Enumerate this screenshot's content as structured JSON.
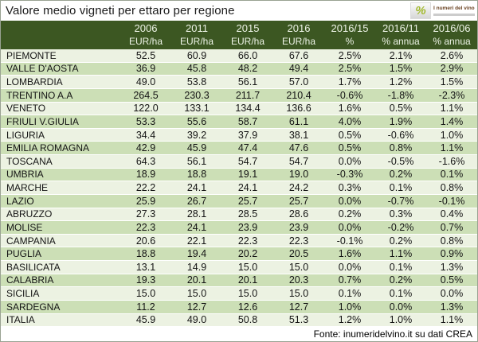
{
  "title": "Valore medio vigneti per ettaro per regione",
  "logo": {
    "name": "I numeri del vino",
    "icon_glyph": "%"
  },
  "footer": {
    "source": "Fonte: inumeridelvino.it su dati CREA"
  },
  "colors": {
    "header_bg": "#3c5722",
    "header_text": "#edf3e6",
    "row_light": "#ecf2e2",
    "row_dark": "#ccdfb6",
    "title_text": "#1b1b1b",
    "logo_green": "#a2b92d"
  },
  "chart_data": {
    "type": "table",
    "title": "Valore medio vigneti per ettaro per regione",
    "columns": [
      {
        "label": "2006",
        "sub": "EUR/ha"
      },
      {
        "label": "2011",
        "sub": "EUR/ha"
      },
      {
        "label": "2015",
        "sub": "EUR/ha"
      },
      {
        "label": "2016",
        "sub": "EUR/ha"
      },
      {
        "label": "2016/15",
        "sub": "%"
      },
      {
        "label": "2016/11",
        "sub": "% annua"
      },
      {
        "label": "2016/06",
        "sub": "% annua"
      }
    ],
    "rows": [
      {
        "region": "PIEMONTE",
        "values": [
          "52.5",
          "60.9",
          "66.0",
          "67.6",
          "2.5%",
          "2.1%",
          "2.6%"
        ]
      },
      {
        "region": "VALLE D'AOSTA",
        "values": [
          "36.9",
          "45.8",
          "48.2",
          "49.4",
          "2.5%",
          "1.5%",
          "2.9%"
        ]
      },
      {
        "region": "LOMBARDIA",
        "values": [
          "49.0",
          "53.8",
          "56.1",
          "57.0",
          "1.7%",
          "1.2%",
          "1.5%"
        ]
      },
      {
        "region": "TRENTINO A.A",
        "values": [
          "264.5",
          "230.3",
          "211.7",
          "210.4",
          "-0.6%",
          "-1.8%",
          "-2.3%"
        ]
      },
      {
        "region": "VENETO",
        "values": [
          "122.0",
          "133.1",
          "134.4",
          "136.6",
          "1.6%",
          "0.5%",
          "1.1%"
        ]
      },
      {
        "region": "FRIULI V.GIULIA",
        "values": [
          "53.3",
          "55.6",
          "58.7",
          "61.1",
          "4.0%",
          "1.9%",
          "1.4%"
        ]
      },
      {
        "region": "LIGURIA",
        "values": [
          "34.4",
          "39.2",
          "37.9",
          "38.1",
          "0.5%",
          "-0.6%",
          "1.0%"
        ]
      },
      {
        "region": "EMILIA ROMAGNA",
        "values": [
          "42.9",
          "45.9",
          "47.4",
          "47.6",
          "0.5%",
          "0.8%",
          "1.1%"
        ]
      },
      {
        "region": "TOSCANA",
        "values": [
          "64.3",
          "56.1",
          "54.7",
          "54.7",
          "0.0%",
          "-0.5%",
          "-1.6%"
        ]
      },
      {
        "region": "UMBRIA",
        "values": [
          "18.9",
          "18.8",
          "19.1",
          "19.0",
          "-0.3%",
          "0.2%",
          "0.1%"
        ]
      },
      {
        "region": "MARCHE",
        "values": [
          "22.2",
          "24.1",
          "24.1",
          "24.2",
          "0.3%",
          "0.1%",
          "0.8%"
        ]
      },
      {
        "region": "LAZIO",
        "values": [
          "25.9",
          "26.7",
          "25.7",
          "25.7",
          "0.0%",
          "-0.7%",
          "-0.1%"
        ]
      },
      {
        "region": "ABRUZZO",
        "values": [
          "27.3",
          "28.1",
          "28.5",
          "28.6",
          "0.2%",
          "0.3%",
          "0.4%"
        ]
      },
      {
        "region": "MOLISE",
        "values": [
          "22.3",
          "24.1",
          "23.9",
          "23.9",
          "0.0%",
          "-0.2%",
          "0.7%"
        ]
      },
      {
        "region": "CAMPANIA",
        "values": [
          "20.6",
          "22.1",
          "22.3",
          "22.3",
          "-0.1%",
          "0.2%",
          "0.8%"
        ]
      },
      {
        "region": "PUGLIA",
        "values": [
          "18.8",
          "19.4",
          "20.2",
          "20.5",
          "1.6%",
          "1.1%",
          "0.9%"
        ]
      },
      {
        "region": "BASILICATA",
        "values": [
          "13.1",
          "14.9",
          "15.0",
          "15.0",
          "0.0%",
          "0.1%",
          "1.3%"
        ]
      },
      {
        "region": "CALABRIA",
        "values": [
          "19.3",
          "20.1",
          "20.1",
          "20.3",
          "0.7%",
          "0.2%",
          "0.5%"
        ]
      },
      {
        "region": "SICILIA",
        "values": [
          "15.0",
          "15.0",
          "15.0",
          "15.0",
          "0.1%",
          "0.1%",
          "0.0%"
        ]
      },
      {
        "region": "SARDEGNA",
        "values": [
          "11.2",
          "12.7",
          "12.6",
          "12.7",
          "1.0%",
          "0.0%",
          "1.3%"
        ]
      },
      {
        "region": "ITALIA",
        "values": [
          "45.9",
          "49.0",
          "50.8",
          "51.3",
          "1.2%",
          "1.0%",
          "1.1%"
        ]
      }
    ]
  }
}
